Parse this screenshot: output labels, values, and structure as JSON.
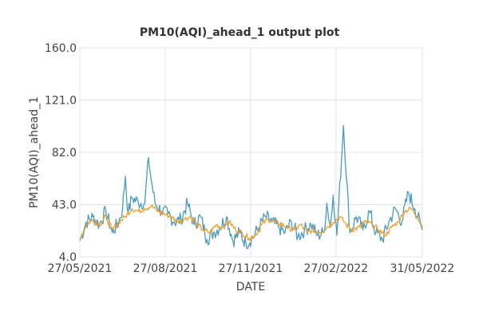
{
  "chart_data": {
    "type": "line",
    "title": "PM10(AQI)_ahead_1 output plot",
    "xlabel": "DATE",
    "ylabel": "PM10(AQI)_ahead_1",
    "x_range": [
      "2021-05-27",
      "2022-05-31"
    ],
    "xticks": [
      "27/05/2021",
      "27/08/2021",
      "27/11/2021",
      "27/02/2022",
      "31/05/2022"
    ],
    "xtick_dates": [
      "2021-05-27",
      "2021-08-27",
      "2021-11-27",
      "2022-02-27",
      "2022-05-31"
    ],
    "ylim": [
      4.0,
      160.0
    ],
    "yticks": [
      "4.0",
      "43.0",
      "82.0",
      "121.0",
      "160.0"
    ],
    "ytick_values": [
      4.0,
      43.0,
      82.0,
      121.0,
      160.0
    ],
    "grid": true,
    "legend": "none",
    "colors": {
      "actual": "#4a9bbf",
      "predicted": "#f0a030"
    },
    "series": [
      {
        "color": "#4a9bbf",
        "x": [
          "2021-05-27",
          "2021-06-03",
          "2021-06-10",
          "2021-06-17",
          "2021-06-24",
          "2021-07-01",
          "2021-07-08",
          "2021-07-12",
          "2021-07-15",
          "2021-07-18",
          "2021-07-22",
          "2021-07-29",
          "2021-08-05",
          "2021-08-09",
          "2021-08-11",
          "2021-08-16",
          "2021-08-23",
          "2021-08-30",
          "2021-09-06",
          "2021-09-13",
          "2021-09-20",
          "2021-09-27",
          "2021-10-04",
          "2021-10-11",
          "2021-10-18",
          "2021-10-25",
          "2021-11-01",
          "2021-11-08",
          "2021-11-15",
          "2021-11-22",
          "2021-11-29",
          "2021-12-06",
          "2021-12-13",
          "2021-12-20",
          "2021-12-27",
          "2022-01-03",
          "2022-01-10",
          "2022-01-17",
          "2022-01-24",
          "2022-01-31",
          "2022-02-07",
          "2022-02-14",
          "2022-02-17",
          "2022-02-21",
          "2022-02-24",
          "2022-02-28",
          "2022-03-07",
          "2022-03-14",
          "2022-03-21",
          "2022-03-28",
          "2022-04-04",
          "2022-04-11",
          "2022-04-18",
          "2022-04-25",
          "2022-05-02",
          "2022-05-09",
          "2022-05-16",
          "2022-05-23",
          "2022-05-31"
        ],
        "y": [
          16,
          30,
          34,
          28,
          38,
          22,
          30,
          40,
          64,
          36,
          48,
          45,
          44,
          78,
          66,
          44,
          38,
          36,
          30,
          32,
          44,
          28,
          34,
          17,
          22,
          26,
          34,
          16,
          22,
          14,
          18,
          26,
          34,
          30,
          26,
          22,
          30,
          19,
          24,
          28,
          20,
          22,
          44,
          26,
          50,
          20,
          102,
          22,
          34,
          24,
          38,
          22,
          17,
          30,
          40,
          30,
          52,
          40,
          24
        ]
      },
      {
        "color": "#f0a030",
        "x": [
          "2021-05-27",
          "2021-06-03",
          "2021-06-10",
          "2021-06-17",
          "2021-06-24",
          "2021-07-01",
          "2021-07-08",
          "2021-07-15",
          "2021-07-22",
          "2021-07-29",
          "2021-08-05",
          "2021-08-12",
          "2021-08-19",
          "2021-08-26",
          "2021-09-02",
          "2021-09-09",
          "2021-09-16",
          "2021-09-23",
          "2021-09-30",
          "2021-10-07",
          "2021-10-14",
          "2021-10-21",
          "2021-10-28",
          "2021-11-04",
          "2021-11-11",
          "2021-11-18",
          "2021-11-25",
          "2021-12-02",
          "2021-12-09",
          "2021-12-16",
          "2021-12-23",
          "2021-12-30",
          "2022-01-06",
          "2022-01-13",
          "2022-01-20",
          "2022-01-27",
          "2022-02-03",
          "2022-02-10",
          "2022-02-17",
          "2022-02-24",
          "2022-03-03",
          "2022-03-10",
          "2022-03-17",
          "2022-03-24",
          "2022-03-31",
          "2022-04-07",
          "2022-04-14",
          "2022-04-21",
          "2022-04-28",
          "2022-05-05",
          "2022-05-12",
          "2022-05-19",
          "2022-05-26",
          "2022-05-31"
        ],
        "y": [
          18,
          28,
          32,
          28,
          34,
          24,
          30,
          34,
          40,
          38,
          40,
          42,
          38,
          36,
          34,
          30,
          32,
          34,
          28,
          24,
          22,
          28,
          26,
          30,
          24,
          22,
          18,
          20,
          28,
          32,
          30,
          28,
          26,
          24,
          28,
          22,
          24,
          22,
          26,
          30,
          34,
          28,
          24,
          26,
          30,
          28,
          24,
          20,
          26,
          30,
          38,
          40,
          34,
          26
        ]
      }
    ]
  }
}
